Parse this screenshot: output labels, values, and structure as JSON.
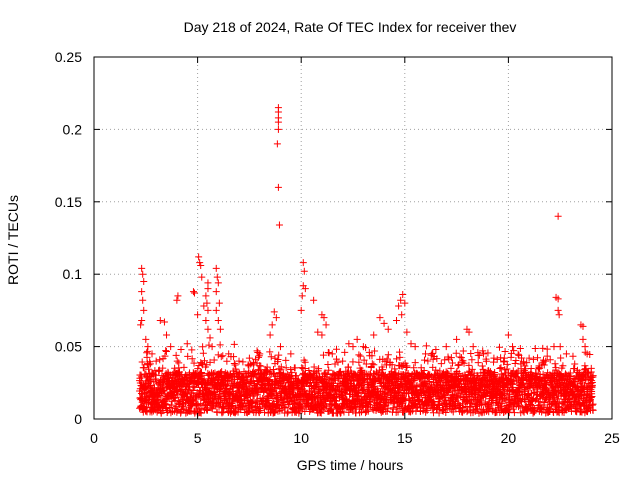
{
  "chart_data": {
    "type": "scatter",
    "title": "Day 218 of 2024, Rate Of TEC Index for receiver thev",
    "xlabel": "GPS time / hours",
    "ylabel": "ROTI / TECUs",
    "xlim": [
      0,
      25
    ],
    "ylim": [
      0,
      0.25
    ],
    "xticks": [
      0,
      5,
      10,
      15,
      20,
      25
    ],
    "xtick_labels": [
      "0",
      "5",
      "10",
      "15",
      "20",
      "25"
    ],
    "yticks": [
      0,
      0.05,
      0.1,
      0.15,
      0.2,
      0.25
    ],
    "ytick_labels": [
      "0",
      "0.05",
      "0.1",
      "0.15",
      "0.2",
      "0.25"
    ],
    "grid": true,
    "marker": "+",
    "color": "#ff0000",
    "series": [
      {
        "name": "ROTI",
        "points": [
          [
            2.3,
            0.104
          ],
          [
            2.35,
            0.1
          ],
          [
            2.4,
            0.095
          ],
          [
            2.3,
            0.088
          ],
          [
            2.35,
            0.082
          ],
          [
            2.4,
            0.075
          ],
          [
            2.3,
            0.068
          ],
          [
            2.25,
            0.065
          ],
          [
            2.5,
            0.055
          ],
          [
            2.6,
            0.05
          ],
          [
            2.8,
            0.045
          ],
          [
            3.0,
            0.04
          ],
          [
            3.2,
            0.068
          ],
          [
            3.4,
            0.067
          ],
          [
            3.5,
            0.058
          ],
          [
            3.7,
            0.05
          ],
          [
            4.0,
            0.082
          ],
          [
            4.05,
            0.085
          ],
          [
            4.2,
            0.048
          ],
          [
            4.5,
            0.052
          ],
          [
            4.8,
            0.088
          ],
          [
            4.85,
            0.087
          ],
          [
            5.0,
            0.072
          ],
          [
            5.05,
            0.112
          ],
          [
            5.1,
            0.108
          ],
          [
            5.15,
            0.106
          ],
          [
            5.2,
            0.098
          ],
          [
            5.3,
            0.078
          ],
          [
            5.5,
            0.094
          ],
          [
            5.5,
            0.09
          ],
          [
            5.4,
            0.085
          ],
          [
            5.45,
            0.08
          ],
          [
            5.5,
            0.075
          ],
          [
            5.4,
            0.068
          ],
          [
            5.5,
            0.062
          ],
          [
            5.6,
            0.056
          ],
          [
            5.7,
            0.05
          ],
          [
            5.9,
            0.104
          ],
          [
            5.95,
            0.098
          ],
          [
            6.0,
            0.094
          ],
          [
            5.9,
            0.088
          ],
          [
            6.05,
            0.08
          ],
          [
            5.9,
            0.075
          ],
          [
            6.0,
            0.068
          ],
          [
            6.1,
            0.062
          ],
          [
            6.5,
            0.045
          ],
          [
            7.0,
            0.04
          ],
          [
            7.5,
            0.042
          ],
          [
            8.0,
            0.045
          ],
          [
            8.5,
            0.058
          ],
          [
            8.6,
            0.065
          ],
          [
            8.7,
            0.074
          ],
          [
            8.8,
            0.07
          ],
          [
            8.9,
            0.215
          ],
          [
            8.9,
            0.212
          ],
          [
            8.9,
            0.208
          ],
          [
            8.9,
            0.205
          ],
          [
            8.9,
            0.2
          ],
          [
            8.85,
            0.19
          ],
          [
            8.9,
            0.16
          ],
          [
            8.95,
            0.134
          ],
          [
            9.0,
            0.05
          ],
          [
            9.5,
            0.045
          ],
          [
            10.0,
            0.075
          ],
          [
            10.05,
            0.085
          ],
          [
            10.1,
            0.108
          ],
          [
            10.15,
            0.102
          ],
          [
            10.1,
            0.092
          ],
          [
            10.2,
            0.09
          ],
          [
            10.6,
            0.082
          ],
          [
            10.8,
            0.06
          ],
          [
            11.0,
            0.072
          ],
          [
            11.1,
            0.07
          ],
          [
            11.2,
            0.065
          ],
          [
            11.0,
            0.058
          ],
          [
            11.5,
            0.045
          ],
          [
            12.0,
            0.04
          ],
          [
            12.3,
            0.052
          ],
          [
            12.5,
            0.05
          ],
          [
            12.7,
            0.055
          ],
          [
            13.0,
            0.05
          ],
          [
            13.5,
            0.058
          ],
          [
            13.8,
            0.07
          ],
          [
            14.0,
            0.066
          ],
          [
            14.2,
            0.062
          ],
          [
            14.6,
            0.068
          ],
          [
            14.7,
            0.078
          ],
          [
            14.8,
            0.082
          ],
          [
            14.9,
            0.086
          ],
          [
            15.0,
            0.08
          ],
          [
            14.85,
            0.072
          ],
          [
            15.1,
            0.06
          ],
          [
            15.3,
            0.052
          ],
          [
            15.5,
            0.05
          ],
          [
            16.0,
            0.045
          ],
          [
            16.5,
            0.048
          ],
          [
            17.0,
            0.05
          ],
          [
            17.5,
            0.055
          ],
          [
            18.0,
            0.062
          ],
          [
            18.1,
            0.06
          ],
          [
            18.3,
            0.05
          ],
          [
            18.8,
            0.045
          ],
          [
            19.3,
            0.042
          ],
          [
            19.8,
            0.04
          ],
          [
            20.0,
            0.058
          ],
          [
            20.2,
            0.05
          ],
          [
            20.6,
            0.038
          ],
          [
            21.0,
            0.042
          ],
          [
            21.5,
            0.035
          ],
          [
            21.8,
            0.04
          ],
          [
            22.2,
            0.05
          ],
          [
            22.3,
            0.084
          ],
          [
            22.4,
            0.083
          ],
          [
            22.4,
            0.075
          ],
          [
            22.45,
            0.072
          ],
          [
            22.4,
            0.14
          ],
          [
            22.5,
            0.05
          ],
          [
            22.8,
            0.045
          ],
          [
            23.2,
            0.038
          ],
          [
            23.5,
            0.065
          ],
          [
            23.6,
            0.064
          ],
          [
            23.6,
            0.055
          ],
          [
            23.7,
            0.05
          ],
          [
            23.8,
            0.045
          ],
          [
            24.0,
            0.035
          ]
        ]
      }
    ]
  }
}
